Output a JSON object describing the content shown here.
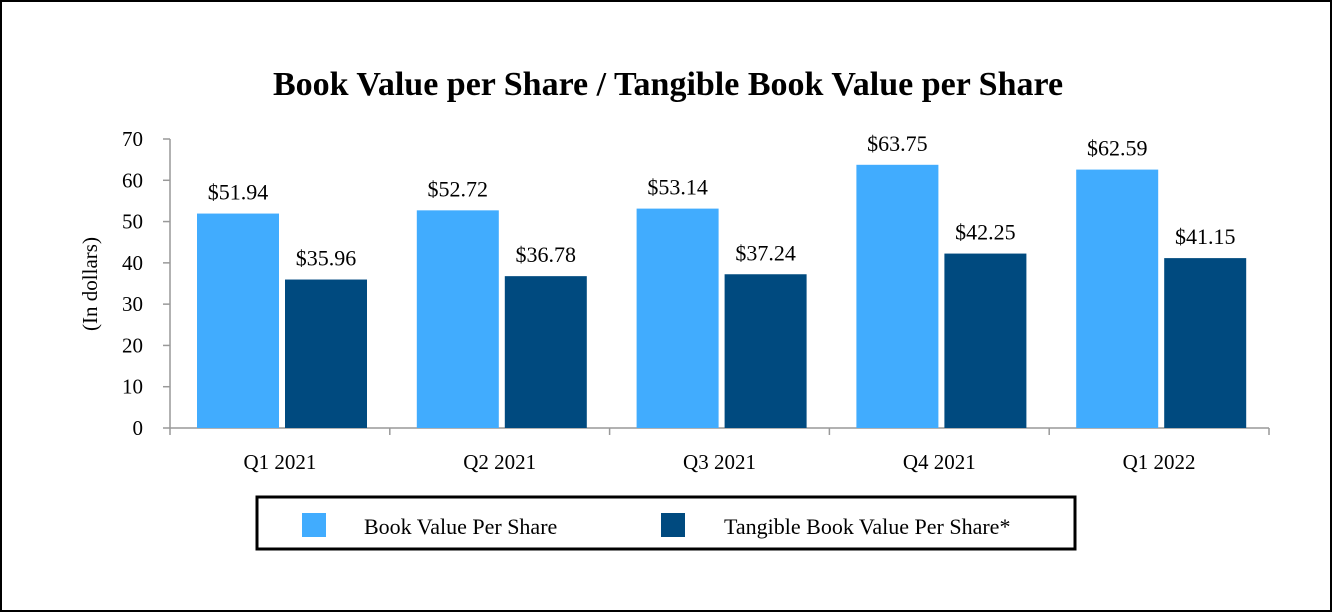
{
  "chart_data": {
    "type": "bar",
    "title": "Book Value per Share / Tangible Book Value per Share",
    "xlabel": "",
    "ylabel": "(In dollars)",
    "ylim": [
      0,
      70
    ],
    "yticks": [
      0,
      10,
      20,
      30,
      40,
      50,
      60,
      70
    ],
    "categories": [
      "Q1 2021",
      "Q2 2021",
      "Q3 2021",
      "Q4 2021",
      "Q1 2022"
    ],
    "series": [
      {
        "name": "Book Value Per Share",
        "color": "#41acfe",
        "values": [
          51.94,
          52.72,
          53.14,
          63.75,
          62.59
        ],
        "labels": [
          "$51.94",
          "$52.72",
          "$53.14",
          "$63.75",
          "$62.59"
        ]
      },
      {
        "name": "Tangible Book Value Per Share*",
        "color": "#004a7f",
        "values": [
          35.96,
          36.78,
          37.24,
          42.25,
          41.15
        ],
        "labels": [
          "$35.96",
          "$36.78",
          "$37.24",
          "$42.25",
          "$41.15"
        ]
      }
    ],
    "grid": false,
    "legend_position": "bottom"
  }
}
